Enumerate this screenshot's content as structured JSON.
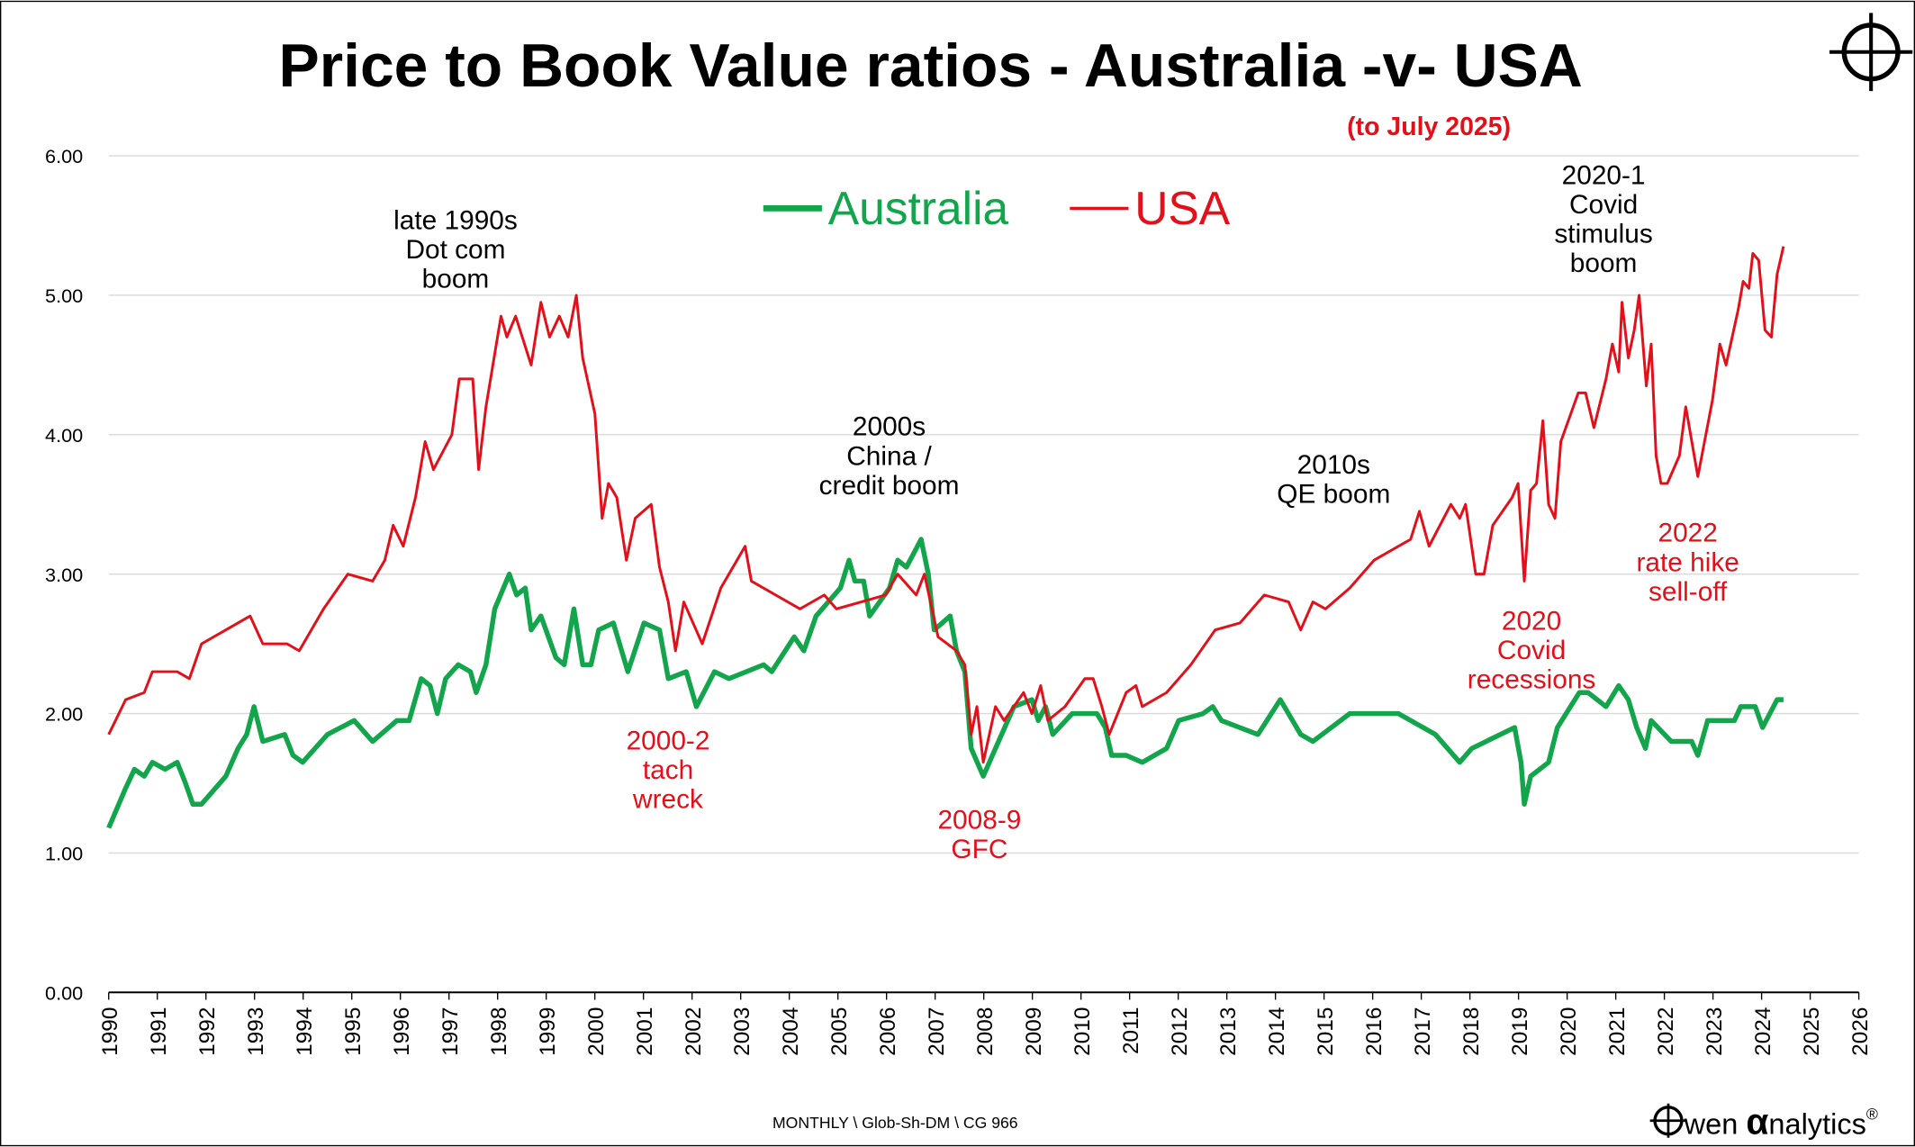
{
  "chart_data": {
    "type": "line",
    "title": "Price to Book Value ratios - Australia -v- USA",
    "subtitle": "(to July 2025)",
    "footnote": "MONTHLY \\ Glob-Sh-DM \\ CG 966",
    "brand": [
      "wen ",
      "α",
      "nalytics",
      "®"
    ],
    "xlim": [
      1990,
      2026
    ],
    "xticks": [
      1990,
      1991,
      1992,
      1993,
      1994,
      1995,
      1996,
      1997,
      1998,
      1999,
      2000,
      2001,
      2002,
      2003,
      2004,
      2005,
      2006,
      2007,
      2008,
      2009,
      2010,
      2011,
      2012,
      2013,
      2014,
      2015,
      2016,
      2017,
      2018,
      2019,
      2020,
      2021,
      2022,
      2023,
      2024,
      2025,
      2026
    ],
    "ylim": [
      0,
      6
    ],
    "yticks": [
      {
        "value": 0,
        "label": "0.00"
      },
      {
        "value": 1,
        "label": "1.00"
      },
      {
        "value": 2,
        "label": "2.00"
      },
      {
        "value": 3,
        "label": "3.00"
      },
      {
        "value": 4,
        "label": "4.00"
      },
      {
        "value": 5,
        "label": "5.00"
      },
      {
        "value": 6,
        "label": "6.00"
      }
    ],
    "grid": true,
    "legend": "top",
    "annotations": [
      {
        "lines": [
          "late 1990s",
          "Dot com",
          "boom"
        ],
        "color": "#000000"
      },
      {
        "lines": [
          "2000s",
          "China /",
          "credit boom"
        ],
        "color": "#000000"
      },
      {
        "lines": [
          "2010s",
          "QE boom"
        ],
        "color": "#000000"
      },
      {
        "lines": [
          "2020-1",
          "Covid",
          "stimulus",
          "boom"
        ],
        "color": "#000000"
      },
      {
        "lines": [
          "2000-2",
          "tach",
          "wreck"
        ],
        "color": "#e3101a"
      },
      {
        "lines": [
          "2008-9",
          "GFC"
        ],
        "color": "#e3101a"
      },
      {
        "lines": [
          "2020",
          "Covid",
          "recessions"
        ],
        "color": "#e3101a"
      },
      {
        "lines": [
          "2022",
          "rate hike",
          "sell-off"
        ],
        "color": "#e3101a"
      }
    ],
    "series": [
      {
        "name": "Australia",
        "color": "#13a54b",
        "x": [
          1990.0,
          1990.33,
          1990.53,
          1990.73,
          1990.9,
          1991.16,
          1991.41,
          1991.58,
          1991.73,
          1991.91,
          1992.41,
          1992.66,
          1992.84,
          1992.99,
          1993.17,
          1993.62,
          1993.79,
          1993.99,
          1994.5,
          1995.05,
          1995.43,
          1995.93,
          1996.18,
          1996.43,
          1996.61,
          1996.76,
          1996.93,
          1997.19,
          1997.44,
          1997.56,
          1997.76,
          1997.94,
          1998.24,
          1998.39,
          1998.57,
          1998.69,
          1998.89,
          1999.2,
          1999.37,
          1999.57,
          1999.75,
          1999.92,
          2000.08,
          2000.38,
          2000.68,
          2001.01,
          2001.33,
          2001.51,
          2001.88,
          2002.09,
          2002.46,
          2002.76,
          2003.47,
          2003.64,
          2004.1,
          2004.3,
          2004.55,
          2005.05,
          2005.23,
          2005.35,
          2005.53,
          2005.65,
          2006.06,
          2006.23,
          2006.41,
          2006.71,
          2006.86,
          2006.98,
          2007.31,
          2007.44,
          2007.61,
          2007.74,
          2007.99,
          2008.24,
          2008.62,
          2008.99,
          2009.12,
          2009.27,
          2009.42,
          2009.82,
          2010.33,
          2010.5,
          2010.63,
          2010.93,
          2011.26,
          2011.76,
          2012.01,
          2012.51,
          2012.71,
          2012.89,
          2013.64,
          2014.1,
          2014.52,
          2014.77,
          2015.53,
          2016.53,
          2017.29,
          2017.79,
          2018.04,
          2018.92,
          2019.05,
          2019.12,
          2019.25,
          2019.62,
          2019.8,
          2020.25,
          2020.43,
          2020.8,
          2021.06,
          2021.26,
          2021.43,
          2021.61,
          2021.73,
          2022.14,
          2022.56,
          2022.69,
          2022.89,
          2023.44,
          2023.57,
          2023.87,
          2024.02,
          2024.32,
          2024.45
        ],
        "values": [
          1.18,
          1.45,
          1.6,
          1.55,
          1.65,
          1.6,
          1.65,
          1.5,
          1.35,
          1.35,
          1.55,
          1.75,
          1.85,
          2.05,
          1.8,
          1.85,
          1.7,
          1.65,
          1.85,
          1.95,
          1.8,
          1.95,
          1.95,
          2.25,
          2.2,
          2.0,
          2.25,
          2.35,
          2.3,
          2.15,
          2.35,
          2.75,
          3.0,
          2.85,
          2.9,
          2.6,
          2.7,
          2.4,
          2.35,
          2.75,
          2.35,
          2.35,
          2.6,
          2.65,
          2.3,
          2.65,
          2.6,
          2.25,
          2.3,
          2.05,
          2.3,
          2.25,
          2.35,
          2.3,
          2.55,
          2.45,
          2.7,
          2.9,
          3.1,
          2.95,
          2.95,
          2.7,
          2.9,
          3.1,
          3.05,
          3.25,
          3.0,
          2.6,
          2.7,
          2.45,
          2.3,
          1.75,
          1.55,
          1.75,
          2.05,
          2.1,
          1.95,
          2.05,
          1.85,
          2.0,
          2.0,
          1.9,
          1.7,
          1.7,
          1.65,
          1.75,
          1.95,
          2.0,
          2.05,
          1.95,
          1.85,
          2.1,
          1.85,
          1.8,
          2.0,
          2.0,
          1.85,
          1.65,
          1.75,
          1.9,
          1.65,
          1.35,
          1.55,
          1.65,
          1.9,
          2.15,
          2.15,
          2.05,
          2.2,
          2.1,
          1.9,
          1.75,
          1.95,
          1.8,
          1.8,
          1.7,
          1.95,
          1.95,
          2.05,
          2.05,
          1.9,
          2.1,
          2.1
        ]
      },
      {
        "name": "USA",
        "color": "#e3101a",
        "x": [
          1990.0,
          1990.35,
          1990.73,
          1990.9,
          1991.41,
          1991.66,
          1991.91,
          1992.41,
          1992.91,
          1993.17,
          1993.67,
          1993.92,
          1994.42,
          1994.92,
          1995.43,
          1995.68,
          1995.85,
          1996.06,
          1996.31,
          1996.51,
          1996.68,
          1997.06,
          1997.21,
          1997.49,
          1997.61,
          1997.76,
          1998.07,
          1998.19,
          1998.37,
          1998.69,
          1998.89,
          1999.07,
          1999.27,
          1999.45,
          1999.62,
          1999.75,
          2000.0,
          2000.15,
          2000.28,
          2000.45,
          2000.65,
          2000.83,
          2001.16,
          2001.33,
          2001.51,
          2001.66,
          2001.83,
          2002.21,
          2002.59,
          2003.09,
          2003.22,
          2003.72,
          2004.22,
          2004.72,
          2004.97,
          2005.48,
          2005.98,
          2006.23,
          2006.61,
          2006.78,
          2007.06,
          2007.44,
          2007.61,
          2007.74,
          2007.86,
          2007.99,
          2008.24,
          2008.42,
          2008.82,
          2008.99,
          2009.17,
          2009.32,
          2009.67,
          2010.08,
          2010.25,
          2010.43,
          2010.58,
          2010.93,
          2011.13,
          2011.26,
          2011.76,
          2012.26,
          2012.76,
          2013.27,
          2013.77,
          2014.27,
          2014.52,
          2014.77,
          2015.03,
          2015.53,
          2016.03,
          2016.53,
          2016.78,
          2016.96,
          2017.16,
          2017.61,
          2017.79,
          2017.91,
          2018.12,
          2018.29,
          2018.47,
          2018.87,
          2018.99,
          2019.12,
          2019.25,
          2019.37,
          2019.5,
          2019.62,
          2019.75,
          2019.87,
          2020.23,
          2020.38,
          2020.55,
          2020.8,
          2020.93,
          2021.06,
          2021.13,
          2021.26,
          2021.38,
          2021.48,
          2021.63,
          2021.73,
          2021.83,
          2021.93,
          2022.06,
          2022.31,
          2022.44,
          2022.69,
          2022.99,
          2023.14,
          2023.27,
          2023.52,
          2023.62,
          2023.74,
          2023.82,
          2023.94,
          2024.07,
          2024.2,
          2024.32,
          2024.45
        ],
        "values": [
          1.85,
          2.1,
          2.15,
          2.3,
          2.3,
          2.25,
          2.5,
          2.6,
          2.7,
          2.5,
          2.5,
          2.45,
          2.75,
          3.0,
          2.95,
          3.1,
          3.35,
          3.2,
          3.55,
          3.95,
          3.75,
          4.0,
          4.4,
          4.4,
          3.75,
          4.2,
          4.85,
          4.7,
          4.85,
          4.5,
          4.95,
          4.7,
          4.85,
          4.7,
          5.0,
          4.55,
          4.15,
          3.4,
          3.65,
          3.55,
          3.1,
          3.4,
          3.5,
          3.05,
          2.8,
          2.45,
          2.8,
          2.5,
          2.9,
          3.2,
          2.95,
          2.85,
          2.75,
          2.85,
          2.75,
          2.8,
          2.85,
          3.0,
          2.85,
          3.0,
          2.55,
          2.45,
          2.35,
          1.85,
          2.05,
          1.65,
          2.05,
          1.95,
          2.15,
          2.0,
          2.2,
          1.95,
          2.05,
          2.25,
          2.25,
          2.05,
          1.85,
          2.15,
          2.2,
          2.05,
          2.15,
          2.35,
          2.6,
          2.65,
          2.85,
          2.8,
          2.6,
          2.8,
          2.75,
          2.9,
          3.1,
          3.2,
          3.25,
          3.45,
          3.2,
          3.5,
          3.4,
          3.5,
          3.0,
          3.0,
          3.35,
          3.55,
          3.65,
          2.95,
          3.6,
          3.65,
          4.1,
          3.5,
          3.4,
          3.95,
          4.3,
          4.3,
          4.05,
          4.4,
          4.65,
          4.45,
          4.95,
          4.55,
          4.75,
          5.0,
          4.35,
          4.65,
          3.85,
          3.65,
          3.65,
          3.85,
          4.2,
          3.7,
          4.25,
          4.65,
          4.5,
          4.9,
          5.1,
          5.05,
          5.3,
          5.25,
          4.75,
          4.7,
          5.15,
          5.35
        ]
      }
    ]
  }
}
